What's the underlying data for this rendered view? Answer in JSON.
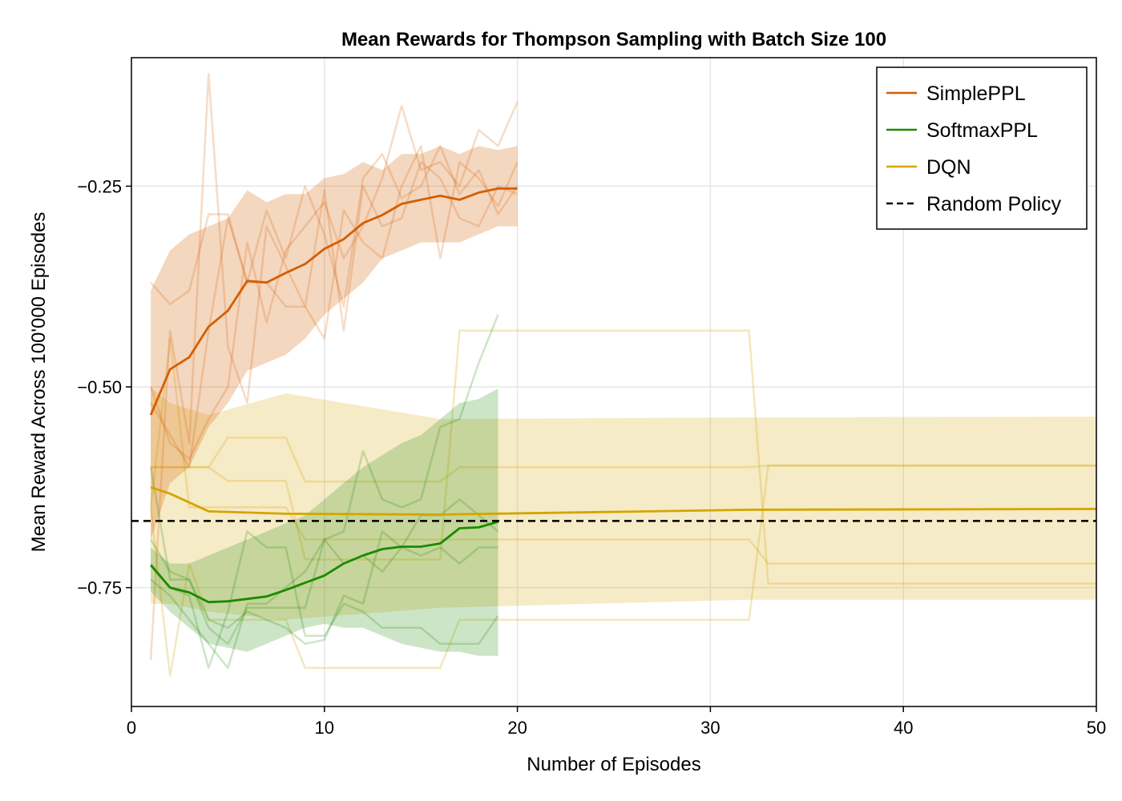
{
  "chart_data": {
    "type": "line",
    "title": "Mean Rewards for Thompson Sampling with Batch Size 100",
    "xlabel": "Number of Episodes",
    "ylabel": "Mean Reward Across 100'000 Episodes",
    "xlim": [
      0,
      50
    ],
    "ylim": [
      -0.898,
      -0.09
    ],
    "xticks": [
      0,
      10,
      20,
      30,
      40,
      50
    ],
    "yticks": [
      -0.75,
      -0.5,
      -0.25
    ],
    "ytick_labels": [
      "−0.75",
      "−0.50",
      "−0.25"
    ],
    "grid": true,
    "legend_position": "top-right",
    "series": [
      {
        "name": "SimplePPL",
        "color": "#d55e00",
        "x": [
          1,
          2,
          3,
          4,
          5,
          6,
          7,
          8,
          9,
          10,
          11,
          12,
          13,
          14,
          15,
          16,
          17,
          18,
          19,
          20
        ],
        "mean": [
          -0.535,
          -0.478,
          -0.463,
          -0.425,
          -0.405,
          -0.368,
          -0.37,
          -0.358,
          -0.347,
          -0.328,
          -0.316,
          -0.296,
          -0.286,
          -0.272,
          -0.267,
          -0.262,
          -0.267,
          -0.258,
          -0.253,
          -0.253
        ],
        "upper": [
          -0.38,
          -0.33,
          -0.31,
          -0.3,
          -0.29,
          -0.255,
          -0.27,
          -0.26,
          -0.26,
          -0.24,
          -0.235,
          -0.22,
          -0.23,
          -0.21,
          -0.21,
          -0.2,
          -0.21,
          -0.2,
          -0.205,
          -0.2
        ],
        "lower": [
          -0.69,
          -0.62,
          -0.6,
          -0.55,
          -0.52,
          -0.48,
          -0.47,
          -0.46,
          -0.44,
          -0.41,
          -0.39,
          -0.37,
          -0.34,
          -0.33,
          -0.32,
          -0.32,
          -0.32,
          -0.31,
          -0.3,
          -0.3
        ],
        "runs": [
          [
            -0.37,
            -0.397,
            -0.38,
            -0.285,
            -0.285,
            -0.37,
            -0.28,
            -0.34,
            -0.25,
            -0.31,
            -0.4,
            -0.24,
            -0.21,
            -0.265,
            -0.25,
            -0.2,
            -0.26,
            -0.23,
            -0.285,
            -0.25
          ],
          [
            -0.84,
            -0.43,
            -0.57,
            -0.11,
            -0.45,
            -0.52,
            -0.3,
            -0.35,
            -0.4,
            -0.255,
            -0.43,
            -0.25,
            -0.3,
            -0.29,
            -0.22,
            -0.24,
            -0.29,
            -0.3,
            -0.25,
            -0.26
          ],
          [
            -0.52,
            -0.56,
            -0.6,
            -0.43,
            -0.29,
            -0.37,
            -0.37,
            -0.4,
            -0.4,
            -0.44,
            -0.28,
            -0.32,
            -0.34,
            -0.25,
            -0.2,
            -0.34,
            -0.22,
            -0.24,
            -0.275,
            -0.22
          ],
          [
            -0.5,
            -0.57,
            -0.59,
            -0.54,
            -0.5,
            -0.32,
            -0.42,
            -0.33,
            -0.3,
            -0.27,
            -0.34,
            -0.3,
            -0.24,
            -0.15,
            -0.23,
            -0.22,
            -0.25,
            -0.18,
            -0.2,
            -0.145
          ]
        ]
      },
      {
        "name": "SoftmaxPPL",
        "color": "#1a8a00",
        "x": [
          1,
          2,
          3,
          4,
          5,
          6,
          7,
          8,
          9,
          10,
          11,
          12,
          13,
          14,
          15,
          16,
          17,
          18,
          19
        ],
        "mean": [
          -0.722,
          -0.75,
          -0.756,
          -0.768,
          -0.767,
          -0.764,
          -0.761,
          -0.753,
          -0.744,
          -0.735,
          -0.72,
          -0.71,
          -0.702,
          -0.699,
          -0.699,
          -0.695,
          -0.676,
          -0.675,
          -0.668
        ],
        "upper": [
          -0.7,
          -0.72,
          -0.72,
          -0.71,
          -0.7,
          -0.69,
          -0.68,
          -0.67,
          -0.66,
          -0.64,
          -0.62,
          -0.6,
          -0.585,
          -0.57,
          -0.56,
          -0.54,
          -0.52,
          -0.515,
          -0.502
        ],
        "lower": [
          -0.755,
          -0.78,
          -0.8,
          -0.82,
          -0.825,
          -0.83,
          -0.82,
          -0.81,
          -0.8,
          -0.795,
          -0.8,
          -0.8,
          -0.81,
          -0.82,
          -0.825,
          -0.83,
          -0.83,
          -0.835,
          -0.835
        ],
        "runs": [
          [
            -0.69,
            -0.73,
            -0.74,
            -0.8,
            -0.82,
            -0.775,
            -0.775,
            -0.775,
            -0.775,
            -0.69,
            -0.68,
            -0.58,
            -0.64,
            -0.65,
            -0.64,
            -0.55,
            -0.54,
            -0.47,
            -0.41
          ],
          [
            -0.72,
            -0.75,
            -0.76,
            -0.85,
            -0.78,
            -0.68,
            -0.7,
            -0.7,
            -0.81,
            -0.81,
            -0.77,
            -0.78,
            -0.8,
            -0.8,
            -0.8,
            -0.82,
            -0.82,
            -0.82,
            -0.785
          ],
          [
            -0.74,
            -0.76,
            -0.79,
            -0.82,
            -0.85,
            -0.77,
            -0.77,
            -0.75,
            -0.73,
            -0.69,
            -0.72,
            -0.71,
            -0.73,
            -0.7,
            -0.71,
            -0.7,
            -0.72,
            -0.7,
            -0.7
          ],
          [
            -0.6,
            -0.74,
            -0.74,
            -0.79,
            -0.8,
            -0.78,
            -0.79,
            -0.8,
            -0.82,
            -0.815,
            -0.76,
            -0.77,
            -0.68,
            -0.7,
            -0.66,
            -0.66,
            -0.64,
            -0.66,
            -0.68
          ]
        ]
      },
      {
        "name": "DQN",
        "color": "#d4a500",
        "x": [
          1,
          2,
          4,
          8,
          16,
          32,
          50
        ],
        "mean": [
          -0.625,
          -0.633,
          -0.655,
          -0.658,
          -0.659,
          -0.653,
          -0.652
        ],
        "upper": [
          -0.5,
          -0.52,
          -0.535,
          -0.508,
          -0.54,
          -0.538,
          -0.537
        ],
        "lower": [
          -0.77,
          -0.77,
          -0.78,
          -0.79,
          -0.775,
          -0.765,
          -0.765
        ],
        "runs": [
          {
            "x": [
              1,
              2,
              3,
              4,
              5,
              8,
              9,
              16,
              17,
              32,
              33,
              50
            ],
            "y": [
              -0.6,
              -0.6,
              -0.6,
              -0.6,
              -0.563,
              -0.563,
              -0.618,
              -0.618,
              -0.6,
              -0.6,
              -0.598,
              -0.598
            ]
          },
          {
            "x": [
              1,
              2,
              3,
              4,
              5,
              8,
              9,
              16,
              17,
              32,
              33,
              50
            ],
            "y": [
              -0.6,
              -0.6,
              -0.6,
              -0.6,
              -0.617,
              -0.617,
              -0.715,
              -0.715,
              -0.43,
              -0.43,
              -0.745,
              -0.745
            ]
          },
          {
            "x": [
              1,
              2,
              3,
              4,
              5,
              8,
              9,
              16,
              17,
              32,
              33,
              50
            ],
            "y": [
              -0.65,
              -0.86,
              -0.72,
              -0.79,
              -0.79,
              -0.79,
              -0.85,
              -0.85,
              -0.79,
              -0.79,
              -0.598,
              -0.598
            ]
          },
          {
            "x": [
              1,
              2,
              3,
              4,
              5,
              8,
              9,
              16,
              17,
              32,
              33,
              50
            ],
            "y": [
              -0.65,
              -0.44,
              -0.65,
              -0.65,
              -0.65,
              -0.65,
              -0.69,
              -0.69,
              -0.69,
              -0.69,
              -0.72,
              -0.72
            ]
          }
        ]
      },
      {
        "name": "Random Policy",
        "color": "#000000",
        "style": "dashed",
        "constant": -0.667
      }
    ]
  }
}
